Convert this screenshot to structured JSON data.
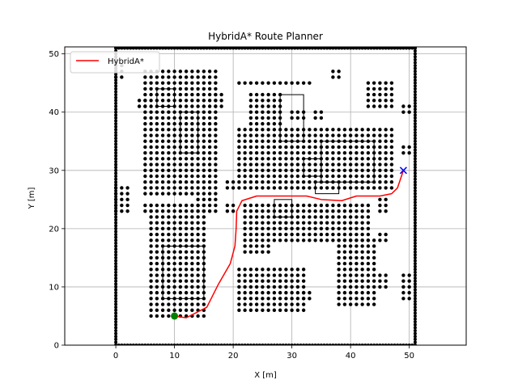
{
  "chart_data": {
    "type": "scatter",
    "title": "HybridA* Route Planner",
    "xlabel": "X [m]",
    "ylabel": "Y [m]",
    "xlim": [
      -8.7,
      59.7
    ],
    "ylim": [
      0,
      51.2
    ],
    "xticks": [
      0,
      10,
      20,
      30,
      40,
      50
    ],
    "yticks": [
      0,
      10,
      20,
      30,
      40,
      50
    ],
    "grid": true,
    "legend": {
      "placement": "top-left",
      "entries": [
        {
          "name": "HybridA*",
          "color": "#ff0000"
        }
      ]
    },
    "obstacles": {
      "color": "#000000",
      "border_lines": [
        [
          [
            0,
            0
          ],
          [
            0,
            51
          ]
        ],
        [
          [
            51,
            0
          ],
          [
            51,
            51
          ]
        ],
        [
          [
            0,
            0
          ],
          [
            51,
            0
          ]
        ],
        [
          [
            0,
            51
          ],
          [
            51,
            51
          ]
        ]
      ],
      "blocks": [
        {
          "x": [
            5,
            17
          ],
          "y": [
            26,
            47
          ]
        },
        {
          "x": [
            21,
            47
          ],
          "y": [
            27,
            37
          ]
        },
        {
          "x": [
            22,
            43
          ],
          "y": [
            18,
            24
          ]
        },
        {
          "x": [
            6,
            15
          ],
          "y": [
            5,
            24
          ]
        },
        {
          "x": [
            21,
            32
          ],
          "y": [
            6,
            13
          ]
        },
        {
          "x": [
            38,
            44
          ],
          "y": [
            7,
            18
          ]
        },
        {
          "x": [
            23,
            28
          ],
          "y": [
            38,
            43
          ]
        },
        {
          "x": [
            21,
            33
          ],
          "y": [
            45,
            45
          ]
        },
        {
          "x": [
            43,
            47
          ],
          "y": [
            41,
            45
          ]
        },
        {
          "x": [
            0,
            1
          ],
          "y": [
            46,
            48
          ]
        },
        {
          "x": [
            0,
            2
          ],
          "y": [
            23,
            27
          ]
        },
        {
          "x": [
            4,
            5
          ],
          "y": [
            41,
            42
          ]
        },
        {
          "x": [
            17,
            18
          ],
          "y": [
            41,
            43
          ]
        },
        {
          "x": [
            14,
            17
          ],
          "y": [
            23,
            25
          ]
        },
        {
          "x": [
            5,
            6
          ],
          "y": [
            23,
            24
          ]
        },
        {
          "x": [
            19,
            20
          ],
          "y": [
            23,
            24
          ]
        },
        {
          "x": [
            19,
            20
          ],
          "y": [
            27,
            28
          ]
        },
        {
          "x": [
            30,
            32
          ],
          "y": [
            39,
            40
          ]
        },
        {
          "x": [
            34,
            35
          ],
          "y": [
            39,
            40
          ]
        },
        {
          "x": [
            37,
            38
          ],
          "y": [
            46,
            47
          ]
        },
        {
          "x": [
            49,
            50
          ],
          "y": [
            33,
            34
          ]
        },
        {
          "x": [
            49,
            50
          ],
          "y": [
            40,
            41
          ]
        },
        {
          "x": [
            45,
            46
          ],
          "y": [
            23,
            25
          ]
        },
        {
          "x": [
            45,
            46
          ],
          "y": [
            18,
            19
          ]
        },
        {
          "x": [
            45,
            46
          ],
          "y": [
            10,
            12
          ]
        },
        {
          "x": [
            49,
            50
          ],
          "y": [
            8,
            12
          ]
        },
        {
          "x": [
            32,
            33
          ],
          "y": [
            8,
            9
          ]
        },
        {
          "x": [
            22,
            26
          ],
          "y": [
            16,
            17
          ]
        }
      ],
      "outlines": [
        {
          "x": [
            7,
            10
          ],
          "y": [
            41,
            44
          ]
        },
        {
          "x": [
            11,
            14
          ],
          "y": [
            33,
            40
          ]
        },
        {
          "x": [
            32,
            35
          ],
          "y": [
            29,
            32
          ]
        },
        {
          "x": [
            35,
            44
          ],
          "y": [
            28,
            35
          ]
        },
        {
          "x": [
            27,
            30
          ],
          "y": [
            22,
            25
          ]
        },
        {
          "x": [
            34,
            38
          ],
          "y": [
            26,
            28
          ]
        },
        {
          "x": [
            8,
            15
          ],
          "y": [
            8,
            17
          ]
        },
        {
          "x": [
            28,
            32
          ],
          "y": [
            35,
            43
          ]
        }
      ]
    },
    "path": {
      "name": "HybridA*",
      "color": "#ff0000",
      "points": [
        [
          10,
          5
        ],
        [
          12,
          4.7
        ],
        [
          15.5,
          6.5
        ],
        [
          17.5,
          10.5
        ],
        [
          19.5,
          14
        ],
        [
          20.3,
          17
        ],
        [
          20.5,
          20
        ],
        [
          20.6,
          23
        ],
        [
          21.5,
          24.8
        ],
        [
          24,
          25.6
        ],
        [
          32.5,
          25.6
        ],
        [
          35,
          25
        ],
        [
          38.5,
          24.8
        ],
        [
          41,
          25.6
        ],
        [
          45,
          25.6
        ],
        [
          47,
          26
        ],
        [
          48,
          27
        ],
        [
          49,
          30
        ]
      ]
    },
    "start": {
      "x": 10,
      "y": 5,
      "color": "#008000"
    },
    "goal": {
      "x": 49,
      "y": 30,
      "color": "#0000ff"
    }
  }
}
